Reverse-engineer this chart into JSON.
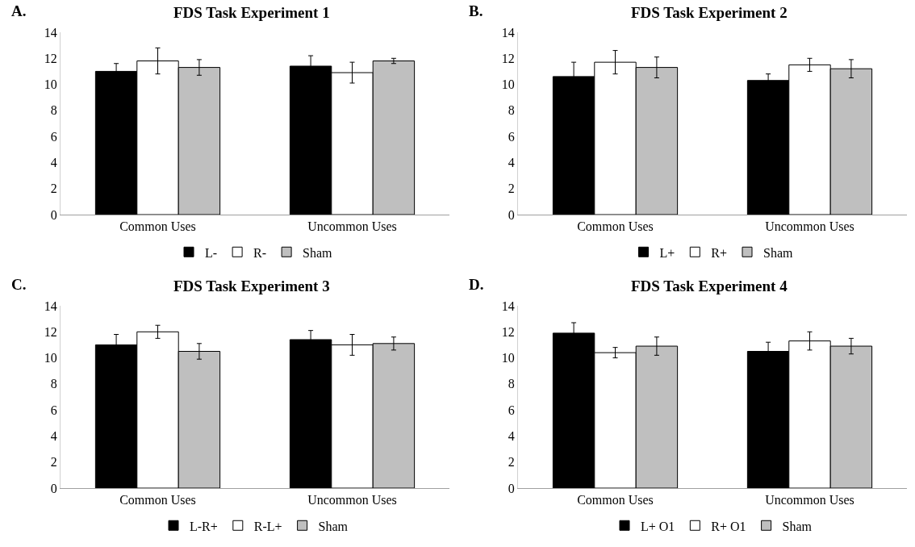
{
  "chart_data": [
    {
      "type": "bar",
      "title": "FDS Task Experiment 1",
      "annotations": [
        "A."
      ],
      "categories": [
        "Common Uses",
        "Uncommon Uses"
      ],
      "ylim": [
        0,
        14
      ],
      "yticks": [
        0,
        2,
        4,
        6,
        8,
        10,
        12,
        14
      ],
      "grid": false,
      "legend": "bottom",
      "series": [
        {
          "name": "L-",
          "color": "#000000",
          "values": [
            11.0,
            11.4
          ],
          "errors": [
            0.6,
            0.8
          ]
        },
        {
          "name": "R-",
          "color": "#ffffff",
          "values": [
            11.8,
            10.9
          ],
          "errors": [
            1.0,
            0.8
          ]
        },
        {
          "name": "Sham",
          "color": "#bfbfbf",
          "values": [
            11.3,
            11.8
          ],
          "errors": [
            0.6,
            0.2
          ]
        }
      ]
    },
    {
      "type": "bar",
      "title": "FDS Task Experiment 2",
      "annotations": [
        "B."
      ],
      "categories": [
        "Common Uses",
        "Uncommon Uses"
      ],
      "ylim": [
        0,
        14
      ],
      "yticks": [
        0,
        2,
        4,
        6,
        8,
        10,
        12,
        14
      ],
      "grid": false,
      "legend": "bottom",
      "series": [
        {
          "name": "L+",
          "color": "#000000",
          "values": [
            10.6,
            10.3
          ],
          "errors": [
            1.1,
            0.5
          ]
        },
        {
          "name": "R+",
          "color": "#ffffff",
          "values": [
            11.7,
            11.5
          ],
          "errors": [
            0.9,
            0.5
          ]
        },
        {
          "name": "Sham",
          "color": "#bfbfbf",
          "values": [
            11.3,
            11.2
          ],
          "errors": [
            0.8,
            0.7
          ]
        }
      ]
    },
    {
      "type": "bar",
      "title": "FDS Task Experiment 3",
      "annotations": [
        "C."
      ],
      "categories": [
        "Common Uses",
        "Uncommon Uses"
      ],
      "ylim": [
        0,
        14
      ],
      "yticks": [
        0,
        2,
        4,
        6,
        8,
        10,
        12,
        14
      ],
      "grid": false,
      "legend": "bottom",
      "series": [
        {
          "name": "L-R+",
          "color": "#000000",
          "values": [
            11.0,
            11.4
          ],
          "errors": [
            0.8,
            0.7
          ]
        },
        {
          "name": "R-L+",
          "color": "#ffffff",
          "values": [
            12.0,
            11.0
          ],
          "errors": [
            0.5,
            0.8
          ]
        },
        {
          "name": "Sham",
          "color": "#bfbfbf",
          "values": [
            10.5,
            11.1
          ],
          "errors": [
            0.6,
            0.5
          ]
        }
      ]
    },
    {
      "type": "bar",
      "title": "FDS Task Experiment 4",
      "annotations": [
        "D."
      ],
      "categories": [
        "Common Uses",
        "Uncommon Uses"
      ],
      "ylim": [
        0,
        14
      ],
      "yticks": [
        0,
        2,
        4,
        6,
        8,
        10,
        12,
        14
      ],
      "grid": false,
      "legend": "bottom",
      "series": [
        {
          "name": "L+ O1",
          "color": "#000000",
          "values": [
            11.9,
            10.5
          ],
          "errors": [
            0.8,
            0.7
          ]
        },
        {
          "name": "R+ O1",
          "color": "#ffffff",
          "values": [
            10.4,
            11.3
          ],
          "errors": [
            0.4,
            0.7
          ]
        },
        {
          "name": "Sham",
          "color": "#bfbfbf",
          "values": [
            10.9,
            10.9
          ],
          "errors": [
            0.7,
            0.6
          ]
        }
      ]
    }
  ]
}
